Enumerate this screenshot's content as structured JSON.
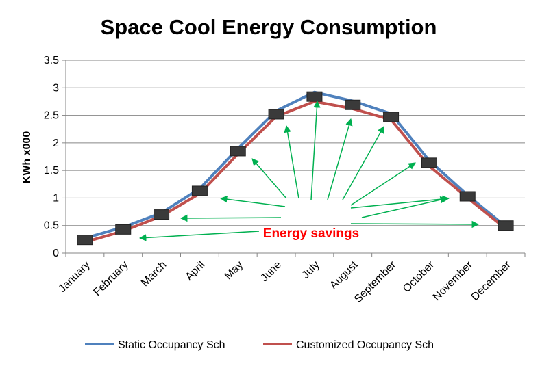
{
  "chart_data": {
    "type": "line",
    "title": "Space Cool Energy Consumption",
    "xlabel": "",
    "ylabel": "KWh x000",
    "ylim": [
      0,
      3.5
    ],
    "yticks": [
      "0",
      "0.5",
      "1",
      "1.5",
      "2",
      "2.5",
      "3",
      "3.5"
    ],
    "ytick_values": [
      0,
      0.5,
      1,
      1.5,
      2,
      2.5,
      3,
      3.5
    ],
    "categories": [
      "January",
      "February",
      "March",
      "April",
      "May",
      "June",
      "July",
      "August",
      "September",
      "October",
      "November",
      "December"
    ],
    "grid": true,
    "legend_placement": "bottom",
    "series": [
      {
        "name": "Static Occupancy Sch",
        "color": "#4f81bd",
        "values": [
          0.27,
          0.47,
          0.73,
          1.17,
          1.9,
          2.58,
          2.92,
          2.76,
          2.53,
          1.68,
          1.05,
          0.48
        ]
      },
      {
        "name": "Customized Occupancy Sch",
        "color": "#c0504d",
        "values": [
          0.2,
          0.4,
          0.67,
          1.08,
          1.8,
          2.48,
          2.75,
          2.62,
          2.42,
          1.58,
          1.0,
          0.44
        ]
      }
    ],
    "markers": {
      "color": "#3a3a3a",
      "values": [
        0.24,
        0.43,
        0.7,
        1.13,
        1.85,
        2.52,
        2.84,
        2.69,
        2.47,
        1.64,
        1.03,
        0.5
      ]
    },
    "annotation": {
      "text": "Energy savings",
      "color": "#ff0000",
      "arrow_color": "#00b050"
    }
  }
}
